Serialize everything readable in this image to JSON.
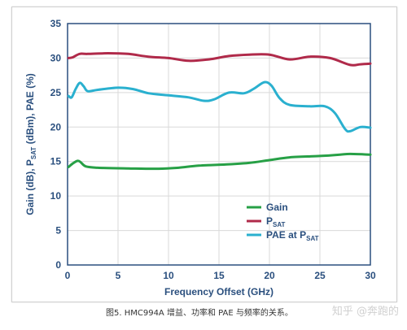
{
  "chart_data": {
    "type": "line",
    "xlabel": "Frequency Offset (GHz)",
    "ylabel": "Gain (dB), P_SAT (dBm), PAE (%)",
    "xlim": [
      0,
      30
    ],
    "ylim": [
      0,
      35
    ],
    "xticks": [
      "0",
      "5",
      "10",
      "15",
      "20",
      "25",
      "30"
    ],
    "yticks": [
      "0",
      "5",
      "10",
      "15",
      "20",
      "25",
      "30",
      "35"
    ],
    "grid": true,
    "legend_position": "bottom-right",
    "series": [
      {
        "name": "Gain",
        "color": "#27a046",
        "points": [
          [
            0.1,
            14.2
          ],
          [
            0.5,
            14.7
          ],
          [
            1.0,
            15.1
          ],
          [
            1.3,
            14.9
          ],
          [
            1.8,
            14.3
          ],
          [
            3,
            14.1
          ],
          [
            6,
            14.0
          ],
          [
            9,
            13.95
          ],
          [
            11,
            14.1
          ],
          [
            13,
            14.4
          ],
          [
            16,
            14.6
          ],
          [
            18,
            14.8
          ],
          [
            20,
            15.2
          ],
          [
            22,
            15.6
          ],
          [
            25,
            15.8
          ],
          [
            27,
            16.0
          ],
          [
            28,
            16.1
          ],
          [
            30,
            16.0
          ]
        ]
      },
      {
        "name": "P_SAT",
        "color": "#b02a4a",
        "points": [
          [
            0.1,
            30.0
          ],
          [
            0.5,
            30.1
          ],
          [
            1.2,
            30.6
          ],
          [
            2,
            30.6
          ],
          [
            4,
            30.7
          ],
          [
            6,
            30.6
          ],
          [
            8,
            30.2
          ],
          [
            10,
            30.0
          ],
          [
            12,
            29.6
          ],
          [
            14,
            29.8
          ],
          [
            16,
            30.3
          ],
          [
            18,
            30.5
          ],
          [
            20,
            30.5
          ],
          [
            22,
            29.8
          ],
          [
            24,
            30.2
          ],
          [
            26,
            30.0
          ],
          [
            28,
            29.0
          ],
          [
            29,
            29.1
          ],
          [
            30,
            29.2
          ]
        ]
      },
      {
        "name": "PAE at P_SAT",
        "color": "#2ab0cf",
        "points": [
          [
            0.1,
            24.5
          ],
          [
            0.4,
            24.3
          ],
          [
            0.8,
            25.5
          ],
          [
            1.2,
            26.4
          ],
          [
            1.6,
            25.9
          ],
          [
            2.0,
            25.2
          ],
          [
            3,
            25.4
          ],
          [
            5,
            25.7
          ],
          [
            6.5,
            25.5
          ],
          [
            8,
            24.9
          ],
          [
            10,
            24.6
          ],
          [
            12,
            24.3
          ],
          [
            13.5,
            23.8
          ],
          [
            14.5,
            24.0
          ],
          [
            16,
            25.0
          ],
          [
            17.5,
            24.9
          ],
          [
            18.5,
            25.6
          ],
          [
            19.5,
            26.5
          ],
          [
            20.2,
            26.0
          ],
          [
            21,
            24.2
          ],
          [
            22,
            23.2
          ],
          [
            24,
            23.0
          ],
          [
            25.5,
            23.0
          ],
          [
            26.5,
            22.0
          ],
          [
            27.5,
            19.7
          ],
          [
            28,
            19.4
          ],
          [
            29,
            20.0
          ],
          [
            30,
            19.9
          ]
        ]
      }
    ]
  },
  "caption": "图5. HMC994A 增益、功率和 PAE 与频率的关系。",
  "watermark": "知乎 @奔跑的"
}
